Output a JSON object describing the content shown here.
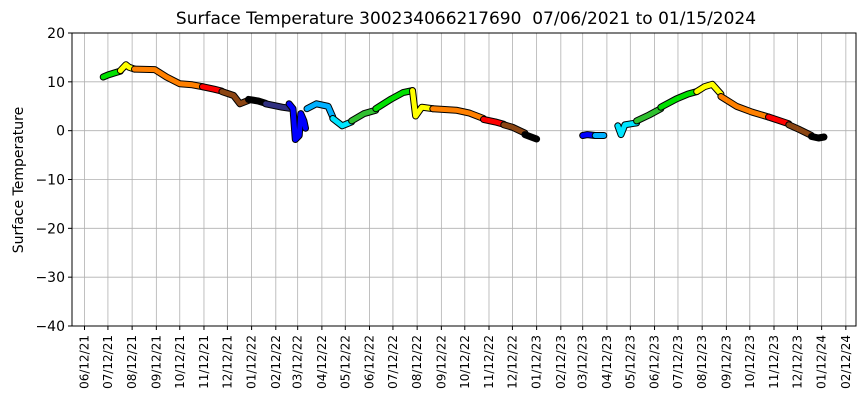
{
  "chart_data": {
    "type": "line",
    "title": "Surface Temperature 300234066217690  07/06/2021 to 01/15/2024",
    "xlabel": "",
    "ylabel": "Surface Temperature",
    "ylim": [
      -40,
      20
    ],
    "yticks": [
      20,
      10,
      0,
      -10,
      -20,
      -30,
      -40
    ],
    "xlim": [
      "2021-05-27",
      "2024-02-25"
    ],
    "xticks": [
      "06/12/21",
      "07/12/21",
      "08/12/21",
      "09/12/21",
      "10/12/21",
      "11/12/21",
      "12/12/21",
      "01/12/22",
      "02/12/22",
      "03/12/22",
      "04/12/22",
      "05/12/22",
      "06/12/22",
      "07/12/22",
      "08/12/22",
      "09/12/22",
      "10/12/22",
      "11/12/22",
      "12/12/22",
      "01/12/23",
      "02/12/23",
      "03/12/23",
      "04/12/23",
      "05/12/23",
      "06/12/23",
      "07/12/23",
      "08/12/23",
      "09/12/23",
      "10/12/23",
      "11/12/23",
      "12/12/23",
      "01/12/24",
      "02/12/24"
    ],
    "grid": true,
    "segments": [
      {
        "color": "#00e000",
        "points": [
          [
            "2021-07-06",
            11.0
          ],
          [
            "2021-07-12",
            11.4
          ],
          [
            "2021-07-20",
            11.8
          ],
          [
            "2021-07-28",
            12.2
          ]
        ]
      },
      {
        "color": "#ffff00",
        "points": [
          [
            "2021-07-28",
            12.3
          ],
          [
            "2021-08-04",
            13.5
          ],
          [
            "2021-08-08",
            13.0
          ],
          [
            "2021-08-15",
            12.6
          ]
        ]
      },
      {
        "color": "#ff8000",
        "points": [
          [
            "2021-08-15",
            12.6
          ],
          [
            "2021-09-10",
            12.5
          ],
          [
            "2021-09-25",
            11.0
          ],
          [
            "2021-10-12",
            9.6
          ],
          [
            "2021-10-28",
            9.4
          ],
          [
            "2021-11-10",
            9.0
          ]
        ]
      },
      {
        "color": "#ff0000",
        "points": [
          [
            "2021-11-10",
            9.0
          ],
          [
            "2021-11-25",
            8.5
          ],
          [
            "2021-12-05",
            8.1
          ]
        ]
      },
      {
        "color": "#8b4513",
        "points": [
          [
            "2021-12-05",
            8.0
          ],
          [
            "2021-12-20",
            7.2
          ],
          [
            "2021-12-28",
            5.5
          ],
          [
            "2022-01-08",
            6.2
          ]
        ]
      },
      {
        "color": "#000000",
        "points": [
          [
            "2022-01-08",
            6.4
          ],
          [
            "2022-01-20",
            6.1
          ],
          [
            "2022-01-30",
            5.6
          ]
        ]
      },
      {
        "color": "#303080",
        "points": [
          [
            "2022-01-30",
            5.5
          ],
          [
            "2022-02-20",
            4.8
          ],
          [
            "2022-03-01",
            4.6
          ]
        ]
      },
      {
        "color": "#0000ff",
        "points": [
          [
            "2022-03-01",
            5.5
          ],
          [
            "2022-03-06",
            4.5
          ],
          [
            "2022-03-09",
            -1.8
          ],
          [
            "2022-03-14",
            -1.0
          ],
          [
            "2022-03-16",
            3.5
          ],
          [
            "2022-03-20",
            2.0
          ],
          [
            "2022-03-22",
            0.5
          ]
        ]
      },
      {
        "color": "#00b0ff",
        "points": [
          [
            "2022-03-24",
            4.5
          ],
          [
            "2022-04-05",
            5.5
          ],
          [
            "2022-04-20",
            5.0
          ],
          [
            "2022-04-26",
            2.8
          ]
        ]
      },
      {
        "color": "#00e5ff",
        "points": [
          [
            "2022-04-26",
            2.5
          ],
          [
            "2022-05-08",
            1.0
          ],
          [
            "2022-05-20",
            1.8
          ]
        ]
      },
      {
        "color": "#30c030",
        "points": [
          [
            "2022-05-20",
            2.0
          ],
          [
            "2022-06-05",
            3.5
          ],
          [
            "2022-06-20",
            4.2
          ]
        ]
      },
      {
        "color": "#00e000",
        "points": [
          [
            "2022-06-20",
            4.5
          ],
          [
            "2022-07-10",
            6.5
          ],
          [
            "2022-07-25",
            7.8
          ],
          [
            "2022-08-06",
            8.2
          ]
        ]
      },
      {
        "color": "#ffff00",
        "points": [
          [
            "2022-08-06",
            8.2
          ],
          [
            "2022-08-10",
            3.0
          ],
          [
            "2022-08-18",
            4.8
          ],
          [
            "2022-09-01",
            4.5
          ]
        ]
      },
      {
        "color": "#ff8000",
        "points": [
          [
            "2022-09-01",
            4.5
          ],
          [
            "2022-10-01",
            4.2
          ],
          [
            "2022-10-18",
            3.6
          ],
          [
            "2022-11-05",
            2.5
          ]
        ]
      },
      {
        "color": "#ff0000",
        "points": [
          [
            "2022-11-05",
            2.3
          ],
          [
            "2022-11-20",
            1.8
          ],
          [
            "2022-12-01",
            1.3
          ]
        ]
      },
      {
        "color": "#8b4513",
        "points": [
          [
            "2022-12-01",
            1.2
          ],
          [
            "2022-12-12",
            0.7
          ],
          [
            "2022-12-28",
            -0.5
          ]
        ]
      },
      {
        "color": "#000000",
        "points": [
          [
            "2022-12-28",
            -0.8
          ],
          [
            "2023-01-05",
            -1.3
          ],
          [
            "2023-01-12",
            -1.7
          ]
        ]
      },
      {
        "color": "#0000ff",
        "points": [
          [
            "2023-03-12",
            -1.0
          ],
          [
            "2023-03-18",
            -0.8
          ],
          [
            "2023-03-28",
            -1.0
          ]
        ]
      },
      {
        "color": "#00b0ff",
        "points": [
          [
            "2023-03-28",
            -1.0
          ],
          [
            "2023-04-08",
            -1.0
          ]
        ]
      },
      {
        "color": "#00e5ff",
        "points": [
          [
            "2023-04-26",
            1.0
          ],
          [
            "2023-04-30",
            -0.8
          ],
          [
            "2023-05-05",
            1.2
          ],
          [
            "2023-05-20",
            1.6
          ]
        ]
      },
      {
        "color": "#30c030",
        "points": [
          [
            "2023-05-20",
            2.0
          ],
          [
            "2023-06-05",
            3.2
          ],
          [
            "2023-06-20",
            4.5
          ]
        ]
      },
      {
        "color": "#00e000",
        "points": [
          [
            "2023-06-20",
            4.8
          ],
          [
            "2023-07-10",
            6.5
          ],
          [
            "2023-07-25",
            7.5
          ],
          [
            "2023-08-05",
            8.0
          ]
        ]
      },
      {
        "color": "#ffff00",
        "points": [
          [
            "2023-08-05",
            8.0
          ],
          [
            "2023-08-15",
            9.0
          ],
          [
            "2023-08-25",
            9.5
          ],
          [
            "2023-09-05",
            7.5
          ]
        ]
      },
      {
        "color": "#ff8000",
        "points": [
          [
            "2023-09-05",
            7.0
          ],
          [
            "2023-09-25",
            5.0
          ],
          [
            "2023-10-15",
            3.8
          ],
          [
            "2023-11-05",
            2.8
          ]
        ]
      },
      {
        "color": "#ff0000",
        "points": [
          [
            "2023-11-05",
            2.8
          ],
          [
            "2023-11-20",
            2.0
          ],
          [
            "2023-12-01",
            1.4
          ]
        ]
      },
      {
        "color": "#8b4513",
        "points": [
          [
            "2023-12-01",
            1.2
          ],
          [
            "2023-12-15",
            0.2
          ],
          [
            "2023-12-30",
            -1.0
          ]
        ]
      },
      {
        "color": "#000000",
        "points": [
          [
            "2023-12-30",
            -1.2
          ],
          [
            "2024-01-08",
            -1.5
          ],
          [
            "2024-01-15",
            -1.3
          ]
        ]
      }
    ]
  }
}
